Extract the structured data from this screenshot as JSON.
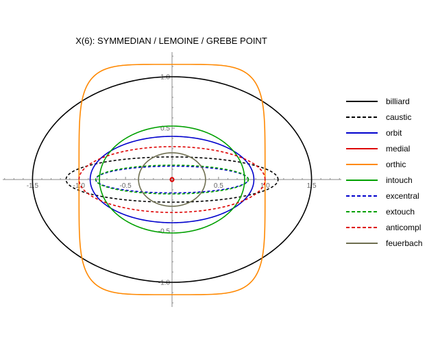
{
  "chart_data": {
    "type": "line",
    "title": "X(6): SYMMEDIAN / LEMOINE / GREBE POINT",
    "xlabel": "",
    "ylabel": "",
    "xlim": [
      -1.82,
      1.82
    ],
    "ylim": [
      -1.24,
      1.24
    ],
    "x_ticks": [
      -1.5,
      -1.0,
      -0.5,
      0.5,
      1.0,
      1.5
    ],
    "x_tick_labels": [
      "-1.5",
      "-1.0",
      "-0.5",
      "0.5",
      "1.0",
      "1.5"
    ],
    "y_ticks": [
      -1.0,
      -0.5,
      0.5,
      1.0
    ],
    "y_tick_labels": [
      "-1.0",
      "-0.5",
      "0.5",
      "1.0"
    ],
    "grid": false,
    "legend_position": "right",
    "series": [
      {
        "name": "billiard",
        "shape": "ellipse",
        "cx": 0,
        "cy": 0,
        "a": 1.5,
        "b": 1.0,
        "color": "#000000",
        "dashed": false
      },
      {
        "name": "caustic",
        "shape": "ellipse",
        "cx": 0,
        "cy": 0,
        "a": 1.14,
        "b": 0.22,
        "color": "#000000",
        "dashed": true
      },
      {
        "name": "orbit",
        "shape": "ellipse",
        "cx": 0,
        "cy": 0,
        "a": 0.88,
        "b": 0.42,
        "color": "#0000cc",
        "dashed": false
      },
      {
        "name": "medial",
        "shape": "ellipse",
        "cx": 0,
        "cy": 0,
        "a": 0.018,
        "b": 0.018,
        "color": "#dd0000",
        "dashed": false
      },
      {
        "name": "orthic",
        "shape": "superellipse",
        "cx": 0,
        "cy": 0,
        "a": 1.0,
        "b": 1.12,
        "exponent": 5,
        "color": "#ff8800",
        "dashed": false
      },
      {
        "name": "intouch",
        "shape": "ellipse",
        "cx": 0,
        "cy": 0,
        "a": 0.78,
        "b": 0.52,
        "color": "#00a000",
        "dashed": false
      },
      {
        "name": "excentral",
        "shape": "ellipse",
        "cx": 0,
        "cy": 0,
        "a": 0.82,
        "b": 0.13,
        "color": "#0000cc",
        "dashed": true
      },
      {
        "name": "extouch",
        "shape": "ellipse",
        "cx": 0,
        "cy": 0,
        "a": 0.82,
        "b": 0.14,
        "color": "#00a000",
        "dashed": true
      },
      {
        "name": "anticompl",
        "shape": "ellipse",
        "cx": 0,
        "cy": 0,
        "a": 1.0,
        "b": 0.32,
        "color": "#dd0000",
        "dashed": true
      },
      {
        "name": "feuerbach",
        "shape": "ellipse",
        "cx": 0,
        "cy": 0,
        "a": 0.36,
        "b": 0.26,
        "color": "#6e6e50",
        "dashed": false
      }
    ]
  }
}
